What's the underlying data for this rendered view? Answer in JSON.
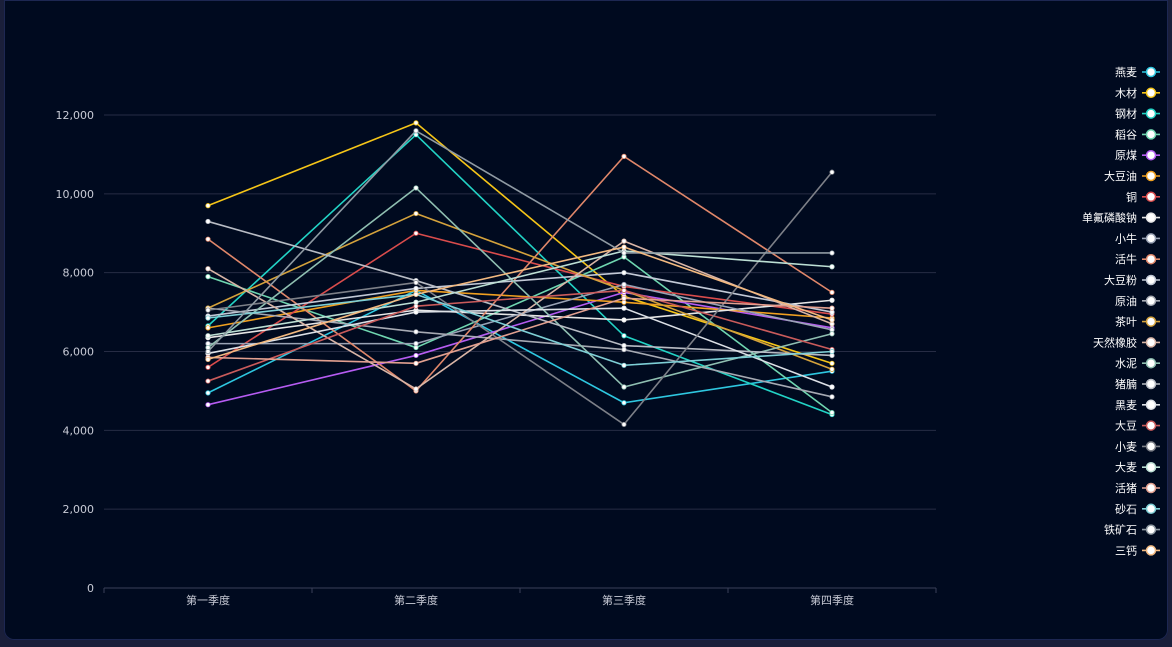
{
  "chart_data": {
    "type": "line",
    "title": "",
    "xlabel": "",
    "ylabel": "",
    "categories": [
      "第一季度",
      "第二季度",
      "第三季度",
      "第四季度"
    ],
    "ylim": [
      0,
      12000
    ],
    "yticks": [
      0,
      2000,
      4000,
      6000,
      8000,
      10000,
      12000
    ],
    "ytick_labels": [
      "0",
      "2,000",
      "4,000",
      "6,000",
      "8,000",
      "10,000",
      "12,000"
    ],
    "grid": true,
    "legend_position": "right",
    "series": [
      {
        "name": "燕麦",
        "color": "#2ec7e0",
        "values": [
          4950,
          7550,
          4700,
          5500
        ]
      },
      {
        "name": "木材",
        "color": "#f5c518",
        "values": [
          9700,
          11800,
          7400,
          5700
        ]
      },
      {
        "name": "钢材",
        "color": "#22d3c5",
        "values": [
          6650,
          11500,
          6400,
          4400
        ]
      },
      {
        "name": "稻谷",
        "color": "#6fd6b0",
        "values": [
          7900,
          6100,
          8400,
          4450
        ]
      },
      {
        "name": "原煤",
        "color": "#b65cf2",
        "values": [
          4650,
          5900,
          7500,
          6600
        ]
      },
      {
        "name": "大豆油",
        "color": "#f0a020",
        "values": [
          6600,
          7550,
          7250,
          6850
        ]
      },
      {
        "name": "铜",
        "color": "#d94c4c",
        "values": [
          5600,
          9000,
          7650,
          6950
        ]
      },
      {
        "name": "单氟磷酸钠",
        "color": "#e6e6e6",
        "values": [
          6350,
          7050,
          6800,
          7300
        ]
      },
      {
        "name": "小牛",
        "color": "#9aa3b5",
        "values": [
          6200,
          6200,
          7700,
          6550
        ]
      },
      {
        "name": "活牛",
        "color": "#e0876a",
        "values": [
          8850,
          5000,
          10950,
          7500
        ]
      },
      {
        "name": "大豆粉",
        "color": "#c2c9d6",
        "values": [
          6900,
          7600,
          8000,
          7000
        ]
      },
      {
        "name": "原油",
        "color": "#a6aab3",
        "values": [
          7100,
          6500,
          6050,
          4850
        ]
      },
      {
        "name": "茶叶",
        "color": "#d4a23c",
        "values": [
          7100,
          9500,
          7550,
          5550
        ]
      },
      {
        "name": "天然橡胶",
        "color": "#d9b5a6",
        "values": [
          8100,
          5050,
          8800,
          6700
        ]
      },
      {
        "name": "水泥",
        "color": "#8fbfb1",
        "values": [
          6100,
          10150,
          5100,
          6450
        ]
      },
      {
        "name": "猪腩",
        "color": "#b8bcc4",
        "values": [
          9300,
          7800,
          6150,
          5900
        ]
      },
      {
        "name": "黑麦",
        "color": "#dce0e6",
        "values": [
          5950,
          7000,
          7100,
          5100
        ]
      },
      {
        "name": "大豆",
        "color": "#c95b5b",
        "values": [
          5250,
          7150,
          7550,
          6050
        ]
      },
      {
        "name": "小麦",
        "color": "#7d8088",
        "values": [
          7050,
          7750,
          4150,
          10550
        ]
      },
      {
        "name": "大麦",
        "color": "#bcdfd4",
        "values": [
          6400,
          7250,
          8550,
          8150
        ]
      },
      {
        "name": "活猪",
        "color": "#e2a090",
        "values": [
          5850,
          5700,
          7350,
          7100
        ]
      },
      {
        "name": "砂石",
        "color": "#7ecfd6",
        "values": [
          6850,
          7450,
          5650,
          6000
        ]
      },
      {
        "name": "铁矿石",
        "color": "#8f9aa3",
        "values": [
          6000,
          11600,
          8500,
          8500
        ]
      },
      {
        "name": "三钙",
        "color": "#f2b980",
        "values": [
          5800,
          7450,
          8650,
          6800
        ]
      }
    ]
  }
}
